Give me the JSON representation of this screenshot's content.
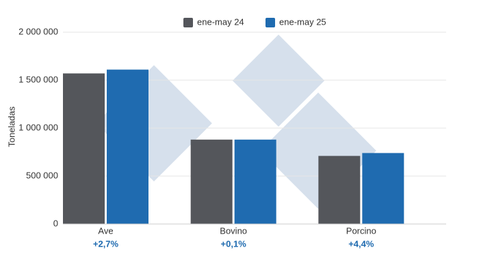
{
  "chart_data": {
    "type": "bar",
    "y_label": "Toneladas",
    "categories": [
      "Ave",
      "Bovino",
      "Porcino"
    ],
    "series": [
      {
        "name": "ene-may 24",
        "color": "#54565b",
        "values": [
          1570000,
          880000,
          710000
        ]
      },
      {
        "name": "ene-may 25",
        "color": "#1f6bb0",
        "values": [
          1610000,
          880000,
          740000
        ]
      }
    ],
    "annotations": [
      "+2,7%",
      "+0,1%",
      "+4,4%"
    ],
    "annotation_color": "#1f6bb0",
    "ylim": [
      0,
      2000000
    ],
    "yticks": [
      0,
      {
        "value": 500000,
        "label": "500 000"
      },
      {
        "value": 1000000,
        "label": "1 000 000"
      },
      {
        "value": 1500000,
        "label": "1 500 000"
      },
      {
        "value": 2000000,
        "label": "2 000 000"
      }
    ],
    "grid": true,
    "legend": "top"
  }
}
